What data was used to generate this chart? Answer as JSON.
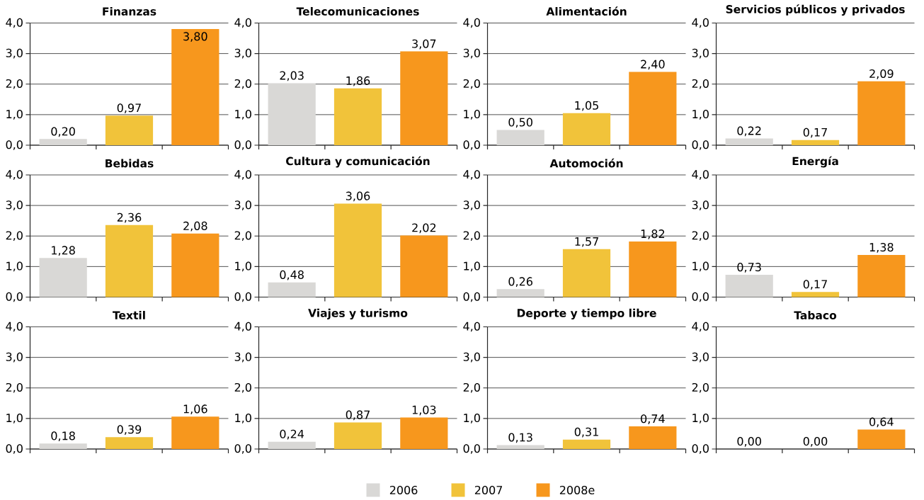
{
  "chart_data": [
    {
      "type": "bar",
      "title": "Finanzas",
      "categories": [
        null,
        null,
        null
      ],
      "series": [
        {
          "color": "#d9d8d6",
          "values": [
            0.2,
            null,
            null
          ],
          "value_labels": [
            "0,20",
            null,
            null
          ]
        },
        {
          "color": "#f1c33a",
          "values": [
            null,
            0.97,
            null
          ],
          "value_labels": [
            null,
            "0,97",
            null
          ]
        },
        {
          "color": "#f7971d",
          "values": [
            null,
            null,
            3.8
          ],
          "value_labels": [
            null,
            null,
            "3,80"
          ]
        }
      ],
      "ylim": [
        0,
        4
      ],
      "yticks": [
        {
          "value": 0,
          "label": "0,0"
        },
        {
          "value": 1,
          "label": "1,0"
        },
        {
          "value": 2,
          "label": "2,0"
        },
        {
          "value": 3,
          "label": "3,0"
        },
        {
          "value": 4,
          "label": "4,0"
        }
      ],
      "grid": "y",
      "tick_labels": "y"
    },
    {
      "type": "bar",
      "title": "Telecomunicaciones",
      "categories": [
        null,
        null,
        null
      ],
      "series": [
        {
          "color": "#d9d8d6",
          "values": [
            2.03,
            null,
            null
          ],
          "value_labels": [
            "2,03",
            null,
            null
          ]
        },
        {
          "color": "#f1c33a",
          "values": [
            null,
            1.86,
            null
          ],
          "value_labels": [
            null,
            "1,86",
            null
          ]
        },
        {
          "color": "#f7971d",
          "values": [
            null,
            null,
            3.07
          ],
          "value_labels": [
            null,
            null,
            "3,07"
          ]
        }
      ],
      "ylim": [
        0,
        4
      ],
      "yticks": [
        {
          "value": 0,
          "label": "0,0"
        },
        {
          "value": 1,
          "label": "1,0"
        },
        {
          "value": 2,
          "label": "2,0"
        },
        {
          "value": 3,
          "label": "3,0"
        },
        {
          "value": 4,
          "label": "4,0"
        }
      ],
      "grid": "y",
      "tick_labels": "y"
    },
    {
      "type": "bar",
      "title": "Alimentación",
      "categories": [
        null,
        null,
        null
      ],
      "series": [
        {
          "color": "#d9d8d6",
          "values": [
            0.5,
            null,
            null
          ],
          "value_labels": [
            "0,50",
            null,
            null
          ]
        },
        {
          "color": "#f1c33a",
          "values": [
            null,
            1.05,
            null
          ],
          "value_labels": [
            null,
            "1,05",
            null
          ]
        },
        {
          "color": "#f7971d",
          "values": [
            null,
            null,
            2.4
          ],
          "value_labels": [
            null,
            null,
            "2,40"
          ]
        }
      ],
      "ylim": [
        0,
        4
      ],
      "yticks": [
        {
          "value": 0,
          "label": "0,0"
        },
        {
          "value": 1,
          "label": "1,0"
        },
        {
          "value": 2,
          "label": "2,0"
        },
        {
          "value": 3,
          "label": "3,0"
        },
        {
          "value": 4,
          "label": "4,0"
        }
      ],
      "grid": "y",
      "tick_labels": "y"
    },
    {
      "type": "bar",
      "title": "Servicios públicos y privados",
      "categories": [
        null,
        null,
        null
      ],
      "series": [
        {
          "color": "#d9d8d6",
          "values": [
            0.22,
            null,
            null
          ],
          "value_labels": [
            "0,22",
            null,
            null
          ]
        },
        {
          "color": "#f1c33a",
          "values": [
            null,
            0.17,
            null
          ],
          "value_labels": [
            null,
            "0,17",
            null
          ]
        },
        {
          "color": "#f7971d",
          "values": [
            null,
            null,
            2.09
          ],
          "value_labels": [
            null,
            null,
            "2,09"
          ]
        }
      ],
      "ylim": [
        0,
        4
      ],
      "yticks": [
        {
          "value": 0,
          "label": "0,0"
        },
        {
          "value": 1,
          "label": "1,0"
        },
        {
          "value": 2,
          "label": "2,0"
        },
        {
          "value": 3,
          "label": "3,0"
        },
        {
          "value": 4,
          "label": "4,0"
        }
      ],
      "grid": "y",
      "tick_labels": "y"
    },
    {
      "type": "bar",
      "title": "Bebidas",
      "categories": [
        null,
        null,
        null
      ],
      "series": [
        {
          "color": "#d9d8d6",
          "values": [
            1.28,
            null,
            null
          ],
          "value_labels": [
            "1,28",
            null,
            null
          ]
        },
        {
          "color": "#f1c33a",
          "values": [
            null,
            2.36,
            null
          ],
          "value_labels": [
            null,
            "2,36",
            null
          ]
        },
        {
          "color": "#f7971d",
          "values": [
            null,
            null,
            2.08
          ],
          "value_labels": [
            null,
            null,
            "2,08"
          ]
        }
      ],
      "ylim": [
        0,
        4
      ],
      "yticks": [
        {
          "value": 0,
          "label": "0,0"
        },
        {
          "value": 1,
          "label": "1,0"
        },
        {
          "value": 2,
          "label": "2,0"
        },
        {
          "value": 3,
          "label": "3,0"
        },
        {
          "value": 4,
          "label": "4,0"
        }
      ],
      "grid": "y",
      "tick_labels": "y"
    },
    {
      "type": "bar",
      "title": "Cultura y comunicación",
      "categories": [
        null,
        null,
        null
      ],
      "series": [
        {
          "color": "#d9d8d6",
          "values": [
            0.48,
            null,
            null
          ],
          "value_labels": [
            "0,48",
            null,
            null
          ]
        },
        {
          "color": "#f1c33a",
          "values": [
            null,
            3.06,
            null
          ],
          "value_labels": [
            null,
            "3,06",
            null
          ]
        },
        {
          "color": "#f7971d",
          "values": [
            null,
            null,
            2.02
          ],
          "value_labels": [
            null,
            null,
            "2,02"
          ]
        }
      ],
      "ylim": [
        0,
        4
      ],
      "yticks": [
        {
          "value": 0,
          "label": "0,0"
        },
        {
          "value": 1,
          "label": "1,0"
        },
        {
          "value": 2,
          "label": "2,0"
        },
        {
          "value": 3,
          "label": "3,0"
        },
        {
          "value": 4,
          "label": "4,0"
        }
      ],
      "grid": "y",
      "tick_labels": "y"
    },
    {
      "type": "bar",
      "title": "Automoción",
      "categories": [
        null,
        null,
        null
      ],
      "series": [
        {
          "color": "#d9d8d6",
          "values": [
            0.26,
            null,
            null
          ],
          "value_labels": [
            "0,26",
            null,
            null
          ]
        },
        {
          "color": "#f1c33a",
          "values": [
            null,
            1.57,
            null
          ],
          "value_labels": [
            null,
            "1,57",
            null
          ]
        },
        {
          "color": "#f7971d",
          "values": [
            null,
            null,
            1.82
          ],
          "value_labels": [
            null,
            null,
            "1,82"
          ]
        }
      ],
      "ylim": [
        0,
        4
      ],
      "yticks": [
        {
          "value": 0,
          "label": "0,0"
        },
        {
          "value": 1,
          "label": "1,0"
        },
        {
          "value": 2,
          "label": "2,0"
        },
        {
          "value": 3,
          "label": "3,0"
        },
        {
          "value": 4,
          "label": "4,0"
        }
      ],
      "grid": "y",
      "tick_labels": "y"
    },
    {
      "type": "bar",
      "title": "Energía",
      "categories": [
        null,
        null,
        null
      ],
      "series": [
        {
          "color": "#d9d8d6",
          "values": [
            0.73,
            null,
            null
          ],
          "value_labels": [
            "0,73",
            null,
            null
          ]
        },
        {
          "color": "#f1c33a",
          "values": [
            null,
            0.17,
            null
          ],
          "value_labels": [
            null,
            "0,17",
            null
          ]
        },
        {
          "color": "#f7971d",
          "values": [
            null,
            null,
            1.38
          ],
          "value_labels": [
            null,
            null,
            "1,38"
          ]
        }
      ],
      "ylim": [
        0,
        4
      ],
      "yticks": [
        {
          "value": 0,
          "label": "0,0"
        },
        {
          "value": 1,
          "label": "1,0"
        },
        {
          "value": 2,
          "label": "2,0"
        },
        {
          "value": 3,
          "label": "3,0"
        },
        {
          "value": 4,
          "label": "4,0"
        }
      ],
      "grid": "y",
      "tick_labels": "y"
    },
    {
      "type": "bar",
      "title": "Textil",
      "categories": [
        null,
        null,
        null
      ],
      "series": [
        {
          "color": "#d9d8d6",
          "values": [
            0.18,
            null,
            null
          ],
          "value_labels": [
            "0,18",
            null,
            null
          ]
        },
        {
          "color": "#f1c33a",
          "values": [
            null,
            0.39,
            null
          ],
          "value_labels": [
            null,
            "0,39",
            null
          ]
        },
        {
          "color": "#f7971d",
          "values": [
            null,
            null,
            1.06
          ],
          "value_labels": [
            null,
            null,
            "1,06"
          ]
        }
      ],
      "ylim": [
        0,
        4
      ],
      "yticks": [
        {
          "value": 0,
          "label": "0,0"
        },
        {
          "value": 1,
          "label": "1,0"
        },
        {
          "value": 2,
          "label": "2,0"
        },
        {
          "value": 3,
          "label": "3,0"
        },
        {
          "value": 4,
          "label": "4,0"
        }
      ],
      "grid": "y",
      "tick_labels": "y"
    },
    {
      "type": "bar",
      "title": "Viajes y turismo",
      "categories": [
        null,
        null,
        null
      ],
      "series": [
        {
          "color": "#d9d8d6",
          "values": [
            0.24,
            null,
            null
          ],
          "value_labels": [
            "0,24",
            null,
            null
          ]
        },
        {
          "color": "#f1c33a",
          "values": [
            null,
            0.87,
            null
          ],
          "value_labels": [
            null,
            "0,87",
            null
          ]
        },
        {
          "color": "#f7971d",
          "values": [
            null,
            null,
            1.03
          ],
          "value_labels": [
            null,
            null,
            "1,03"
          ]
        }
      ],
      "ylim": [
        0,
        4
      ],
      "yticks": [
        {
          "value": 0,
          "label": "0,0"
        },
        {
          "value": 1,
          "label": "1,0"
        },
        {
          "value": 2,
          "label": "2,0"
        },
        {
          "value": 3,
          "label": "3,0"
        },
        {
          "value": 4,
          "label": "4,0"
        }
      ],
      "grid": "y",
      "tick_labels": "y"
    },
    {
      "type": "bar",
      "title": "Deporte y tiempo libre",
      "categories": [
        null,
        null,
        null
      ],
      "series": [
        {
          "color": "#d9d8d6",
          "values": [
            0.13,
            null,
            null
          ],
          "value_labels": [
            "0,13",
            null,
            null
          ]
        },
        {
          "color": "#f1c33a",
          "values": [
            null,
            0.31,
            null
          ],
          "value_labels": [
            null,
            "0,31",
            null
          ]
        },
        {
          "color": "#f7971d",
          "values": [
            null,
            null,
            0.74
          ],
          "value_labels": [
            null,
            null,
            "0,74"
          ]
        }
      ],
      "ylim": [
        0,
        4
      ],
      "yticks": [
        {
          "value": 0,
          "label": "0,0"
        },
        {
          "value": 1,
          "label": "1,0"
        },
        {
          "value": 2,
          "label": "2,0"
        },
        {
          "value": 3,
          "label": "3,0"
        },
        {
          "value": 4,
          "label": "4,0"
        }
      ],
      "grid": "y",
      "tick_labels": "y"
    },
    {
      "type": "bar",
      "title": "Tabaco",
      "categories": [
        null,
        null,
        null
      ],
      "series": [
        {
          "name": "2006",
          "color": "#d9d8d6",
          "values": [
            0.0,
            null,
            null
          ],
          "value_labels": [
            "0,00",
            null,
            null
          ]
        },
        {
          "name": "2007",
          "color": "#f1c33a",
          "values": [
            null,
            0.0,
            null
          ],
          "value_labels": [
            null,
            "0,00",
            null
          ]
        },
        {
          "name": "2008e",
          "color": "#f7971d",
          "values": [
            null,
            null,
            0.64
          ],
          "value_labels": [
            null,
            null,
            "0,64"
          ]
        }
      ],
      "ylim": [
        0,
        4
      ],
      "yticks": [
        {
          "value": 0,
          "label": "0,0"
        },
        {
          "value": 1,
          "label": "1,0"
        },
        {
          "value": 2,
          "label": "2,0"
        },
        {
          "value": 3,
          "label": "3,0"
        },
        {
          "value": 4,
          "label": "4,0"
        }
      ],
      "grid": "y",
      "tick_labels": "y",
      "legend": "bottom"
    }
  ]
}
